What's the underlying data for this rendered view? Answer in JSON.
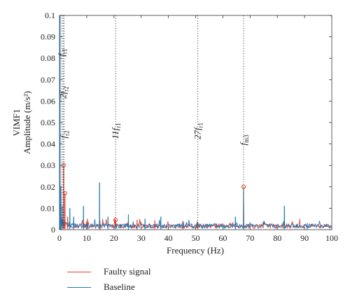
{
  "chart_data": {
    "type": "line",
    "xlabel": "Frequency (Hz)",
    "ylabel": "VIMF1\nAmplitude (m/s²)",
    "xlim": [
      0,
      100
    ],
    "ylim": [
      0,
      0.1
    ],
    "xticks": [
      "0",
      "10",
      "20",
      "30",
      "40",
      "50",
      "60",
      "70",
      "80",
      "90",
      "100"
    ],
    "yticks": [
      "0",
      "0.01",
      "0.02",
      "0.03",
      "0.04",
      "0.05",
      "0.06",
      "0.07",
      "0.08",
      "0.09",
      "0.1"
    ],
    "grid": false,
    "legend_position": "below",
    "series": [
      {
        "name": "Faulty signal",
        "color": "#e8412c",
        "peaks": [
          {
            "x": 0.3,
            "y": 0.014
          },
          {
            "x": 1.5,
            "y": 0.03
          },
          {
            "x": 2.0,
            "y": 0.017
          },
          {
            "x": 3.0,
            "y": 0.006
          },
          {
            "x": 10.2,
            "y": 0.005
          },
          {
            "x": 14.9,
            "y": 0.004
          },
          {
            "x": 20.6,
            "y": 0.0045
          },
          {
            "x": 28.5,
            "y": 0.0045
          },
          {
            "x": 35.0,
            "y": 0.004
          },
          {
            "x": 45.3,
            "y": 0.004
          },
          {
            "x": 50.8,
            "y": 0.002
          },
          {
            "x": 67.6,
            "y": 0.02
          }
        ],
        "markers": [
          {
            "x": 1.5,
            "y": 0.03
          },
          {
            "x": 2.0,
            "y": 0.017
          },
          {
            "x": 20.6,
            "y": 0.0045
          },
          {
            "x": 50.8,
            "y": 0.002
          },
          {
            "x": 67.6,
            "y": 0.02
          }
        ]
      },
      {
        "name": "Baseline",
        "color": "#1f77b4",
        "peaks": [
          {
            "x": 0.2,
            "y": 0.1
          },
          {
            "x": 0.5,
            "y": 0.02
          },
          {
            "x": 1.0,
            "y": 0.011
          },
          {
            "x": 3.8,
            "y": 0.01
          },
          {
            "x": 5.2,
            "y": 0.006
          },
          {
            "x": 8.8,
            "y": 0.011
          },
          {
            "x": 14.7,
            "y": 0.022
          },
          {
            "x": 17.8,
            "y": 0.006
          },
          {
            "x": 25.3,
            "y": 0.007
          },
          {
            "x": 31.4,
            "y": 0.005
          },
          {
            "x": 37.2,
            "y": 0.006
          },
          {
            "x": 64.6,
            "y": 0.006
          },
          {
            "x": 67.6,
            "y": 0.019
          },
          {
            "x": 82.6,
            "y": 0.011
          },
          {
            "x": 91.0,
            "y": 0.003
          }
        ]
      }
    ],
    "annotations": [
      {
        "x": 0.9,
        "label_main": "f",
        "label_sub": "r1"
      },
      {
        "x": 1.35,
        "label_main": "2f",
        "label_sub": "r2"
      },
      {
        "x": 1.7,
        "label_main": "f",
        "label_sub": "r2"
      },
      {
        "x": 20.6,
        "label_main": "11f",
        "label_sub": "r1"
      },
      {
        "x": 50.8,
        "label_main": "27f",
        "label_sub": "r1"
      },
      {
        "x": 67.6,
        "label_main": "f",
        "label_sub": "m3"
      }
    ]
  }
}
